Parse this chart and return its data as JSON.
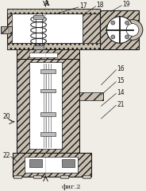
{
  "background_color": "#f0ece6",
  "line_color": "#1a1a1a",
  "hatch_color": "#c8bfb0",
  "caption": "фиг.2",
  "label_A": "A",
  "figsize": [
    1.84,
    2.4
  ],
  "dpi": 100
}
